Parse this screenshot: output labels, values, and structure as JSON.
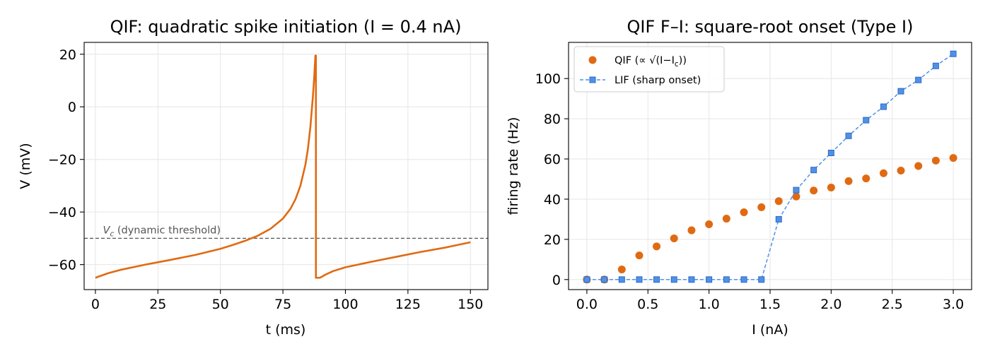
{
  "chart_data": [
    {
      "type": "line",
      "title": "QIF: quadratic spike initiation (I = 0.4 nA)",
      "xlabel": "t (ms)",
      "ylabel": "V (mV)",
      "xlim": [
        -4.5,
        157
      ],
      "ylim": [
        -69.5,
        24.5
      ],
      "xticks": [
        0,
        25,
        50,
        75,
        100,
        125,
        150
      ],
      "xticklabels": [
        "0",
        "25",
        "50",
        "75",
        "100",
        "125",
        "150"
      ],
      "yticks": [
        -60,
        -40,
        -20,
        0,
        20
      ],
      "yticklabels": [
        "−60",
        "−40",
        "−20",
        "0",
        "20"
      ],
      "grid": true,
      "line_color": "#e06a12",
      "series": [
        {
          "x": [
            0,
            5,
            10,
            20,
            30,
            40,
            50,
            55,
            60,
            65,
            70,
            75,
            78,
            80,
            82,
            84,
            85,
            86,
            87,
            87.5,
            88,
            88.2,
            88.2,
            89.5,
            89.8,
            90.5,
            91,
            92,
            95,
            100,
            110,
            120,
            130,
            140,
            150
          ],
          "y": [
            -65,
            -63.3,
            -62,
            -60,
            -58.2,
            -56.3,
            -54,
            -52.5,
            -50.9,
            -49,
            -46.4,
            -42.5,
            -38.8,
            -35.2,
            -30,
            -22,
            -16,
            -7.5,
            4,
            11,
            19.5,
            19.5,
            -65,
            -65,
            -65,
            -64.6,
            -64.4,
            -63.8,
            -62.5,
            -61,
            -59,
            -57.1,
            -55.2,
            -53.5,
            -51.5
          ]
        }
      ],
      "hline": {
        "y": -50,
        "label": "Vc",
        "label_suffix": "(dynamic threshold)",
        "color": "#555555"
      }
    },
    {
      "type": "scatter",
      "title": "QIF F–I: square-root onset (Type I)",
      "xlabel": "I (nA)",
      "ylabel": "firing rate (Hz)",
      "xlim": [
        -0.15,
        3.15
      ],
      "ylim": [
        -5,
        118
      ],
      "xticks": [
        0,
        0.5,
        1,
        1.5,
        2,
        2.5,
        3
      ],
      "xticklabels": [
        "0.0",
        "0.5",
        "1.0",
        "1.5",
        "2.0",
        "2.5",
        "3.0"
      ],
      "yticks": [
        0,
        20,
        40,
        60,
        80,
        100
      ],
      "yticklabels": [
        "0",
        "20",
        "40",
        "60",
        "80",
        "100"
      ],
      "grid": true,
      "legend_loc": "upper-left",
      "series": [
        {
          "name": "QIF (∝ √(I−Ic))",
          "legend_text": "QIF (∝ √(I−I",
          "legend_sub": "c",
          "legend_tail": "))",
          "color": "#e06a12",
          "marker": "circle",
          "x": [
            0,
            0.143,
            0.286,
            0.429,
            0.571,
            0.714,
            0.857,
            1.0,
            1.143,
            1.286,
            1.429,
            1.571,
            1.714,
            1.857,
            2.0,
            2.143,
            2.286,
            2.429,
            2.571,
            2.714,
            2.857,
            3.0
          ],
          "y": [
            0,
            0,
            5,
            12,
            16.5,
            20.5,
            24.5,
            27.5,
            30.3,
            33.5,
            36,
            39,
            41.3,
            44.3,
            45.8,
            49,
            50.3,
            52.9,
            54.2,
            56.5,
            59.2,
            60.5
          ]
        },
        {
          "name": "LIF (sharp onset)",
          "color": "#5090e8",
          "marker": "square",
          "dashed": true,
          "x": [
            0,
            0.143,
            0.286,
            0.429,
            0.571,
            0.714,
            0.857,
            1.0,
            1.143,
            1.286,
            1.429,
            1.571,
            1.714,
            1.857,
            2.0,
            2.143,
            2.286,
            2.429,
            2.571,
            2.714,
            2.857,
            3.0
          ],
          "y": [
            0,
            0,
            0,
            0,
            0,
            0,
            0,
            0,
            0,
            0,
            0,
            30,
            44.5,
            54.5,
            63,
            71.5,
            79.3,
            86,
            93.7,
            99.3,
            106.3,
            112.3
          ]
        }
      ]
    }
  ]
}
